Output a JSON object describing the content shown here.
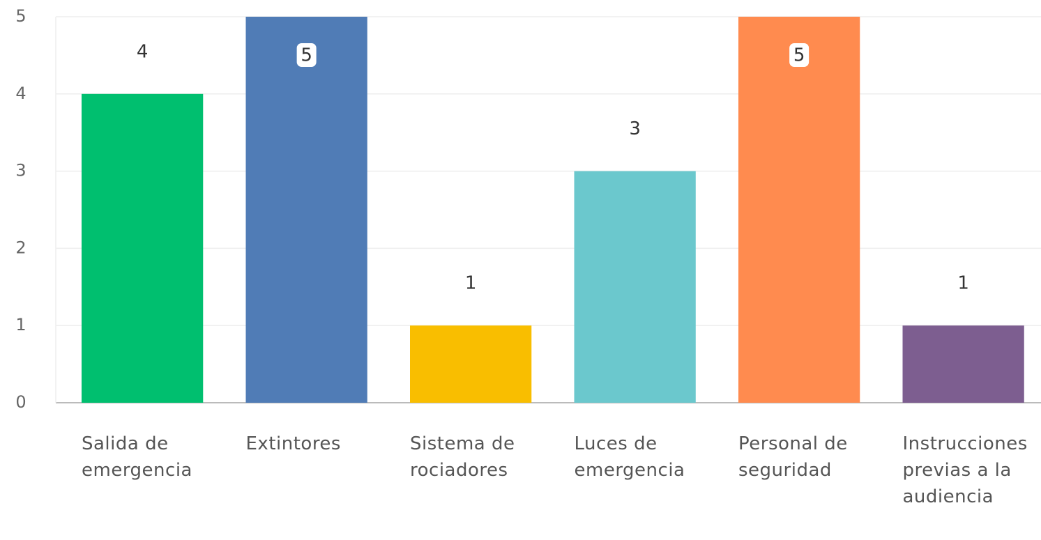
{
  "chart_data": {
    "type": "bar",
    "categories": [
      "Salida de emergencia",
      "Extintores",
      "Sistema de rociadores",
      "Luces de emergencia",
      "Personal de seguridad",
      "Instrucciones previas a la audiencia"
    ],
    "values": [
      4,
      5,
      1,
      3,
      5,
      1
    ],
    "colors": [
      "#00bf6f",
      "#507cb6",
      "#f9be00",
      "#6bc8cd",
      "#ff8b4f",
      "#7d5e90"
    ],
    "ylim": [
      0,
      5
    ],
    "yticks": [
      0,
      1,
      2,
      3,
      4,
      5
    ],
    "grid": true
  }
}
